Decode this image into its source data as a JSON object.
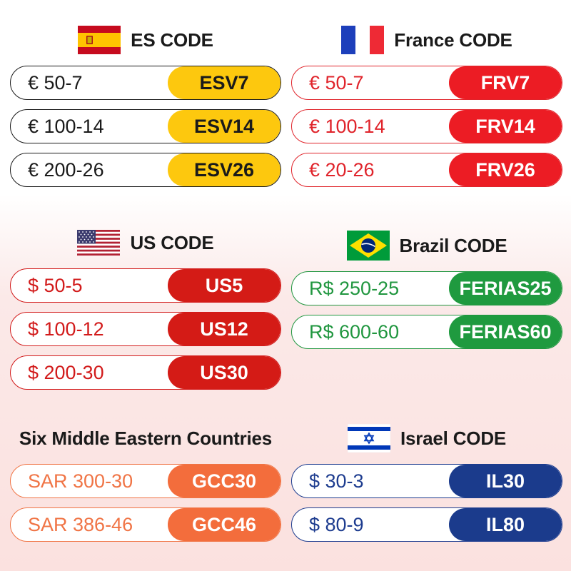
{
  "sections": {
    "es": {
      "title": "ES CODE",
      "flag_icon": "spain-flag-icon",
      "rows": [
        {
          "amount": "€ 50-7",
          "code": "ESV7"
        },
        {
          "amount": "€ 100-14",
          "code": "ESV14"
        },
        {
          "amount": "€ 200-26",
          "code": "ESV26"
        }
      ]
    },
    "fr": {
      "title": "France CODE",
      "flag_icon": "france-flag-icon",
      "rows": [
        {
          "amount": "€ 50-7",
          "code": "FRV7"
        },
        {
          "amount": "€ 100-14",
          "code": "FRV14"
        },
        {
          "amount": "€ 20-26",
          "code": "FRV26"
        }
      ]
    },
    "us": {
      "title": "US CODE",
      "flag_icon": "usa-flag-icon",
      "rows": [
        {
          "amount": "$ 50-5",
          "code": "US5"
        },
        {
          "amount": "$ 100-12",
          "code": "US12"
        },
        {
          "amount": "$ 200-30",
          "code": "US30"
        }
      ]
    },
    "br": {
      "title": "Brazil CODE",
      "flag_icon": "brazil-flag-icon",
      "rows": [
        {
          "amount": "R$ 250-25",
          "code": "FERIAS25"
        },
        {
          "amount": "R$ 600-60",
          "code": "FERIAS60"
        }
      ]
    },
    "gcc": {
      "title": "Six Middle Eastern Countries",
      "rows": [
        {
          "amount": "SAR 300-30",
          "code": "GCC30"
        },
        {
          "amount": "SAR 386-46",
          "code": "GCC46"
        }
      ]
    },
    "il": {
      "title": "Israel CODE",
      "flag_icon": "israel-flag-icon",
      "rows": [
        {
          "amount": "$ 30-3",
          "code": "IL30"
        },
        {
          "amount": "$ 80-9",
          "code": "IL80"
        }
      ]
    }
  },
  "colors": {
    "es_code_bg": "#fdc80e",
    "fr_code_bg": "#ec1c24",
    "us_code_bg": "#d41b16",
    "br_code_bg": "#1f9a3f",
    "gcc_code_bg": "#f36d3c",
    "il_code_bg": "#1b3b8c"
  }
}
